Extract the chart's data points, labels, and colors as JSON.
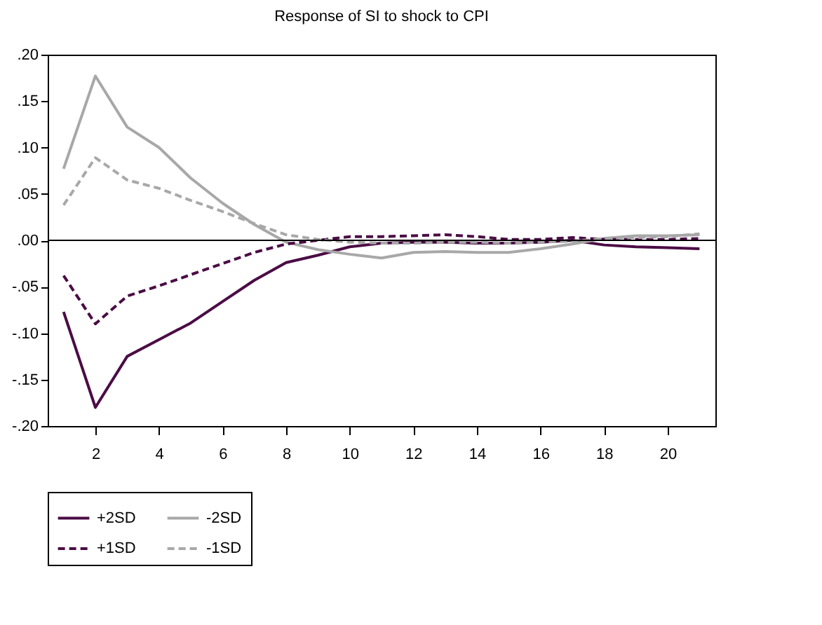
{
  "chart_data": {
    "type": "line",
    "title": "Response of SI to shock to CPI",
    "x": [
      1,
      2,
      3,
      4,
      5,
      6,
      7,
      8,
      9,
      10,
      11,
      12,
      13,
      14,
      15,
      16,
      17,
      18,
      19,
      20,
      21
    ],
    "xlim": [
      0.5,
      21.5
    ],
    "xticks": [
      2,
      4,
      6,
      8,
      10,
      12,
      14,
      16,
      18,
      20
    ],
    "ylim": [
      -0.2,
      0.2
    ],
    "yticks": [
      {
        "value": -0.2,
        "label": "-.20"
      },
      {
        "value": -0.15,
        "label": "-.15"
      },
      {
        "value": -0.1,
        "label": "-.10"
      },
      {
        "value": -0.05,
        "label": "-.05"
      },
      {
        "value": 0,
        "label": ".00"
      },
      {
        "value": 0.05,
        "label": ".05"
      },
      {
        "value": 0.1,
        "label": ".10"
      },
      {
        "value": 0.15,
        "label": ".15"
      },
      {
        "value": 0.2,
        "label": ".20"
      }
    ],
    "series": [
      {
        "name": "+2SD",
        "color": "#4b0c45",
        "line_style": "solid",
        "values": [
          -0.077,
          -0.18,
          -0.125,
          -0.107,
          -0.089,
          -0.066,
          -0.043,
          -0.024,
          -0.016,
          -0.007,
          -0.003,
          -0.002,
          -0.002,
          -0.003,
          -0.003,
          -0.002,
          0.0,
          -0.005,
          -0.007,
          -0.008,
          -0.009
        ]
      },
      {
        "name": "-2SD",
        "color": "#a8a8a8",
        "line_style": "solid",
        "values": [
          0.077,
          0.177,
          0.122,
          0.1,
          0.067,
          0.04,
          0.017,
          -0.002,
          -0.01,
          -0.015,
          -0.019,
          -0.013,
          -0.012,
          -0.013,
          -0.013,
          -0.009,
          -0.004,
          0.002,
          0.005,
          0.005,
          0.006
        ]
      },
      {
        "name": "+1SD",
        "color": "#4b0c45",
        "line_style": "dashed",
        "values": [
          -0.038,
          -0.09,
          -0.06,
          -0.049,
          -0.037,
          -0.025,
          -0.013,
          -0.004,
          0.0,
          0.004,
          0.004,
          0.005,
          0.006,
          0.004,
          0.001,
          0.001,
          0.003,
          0.001,
          0.001,
          0.001,
          0.002
        ]
      },
      {
        "name": "-1SD",
        "color": "#a8a8a8",
        "line_style": "dashed",
        "values": [
          0.038,
          0.089,
          0.065,
          0.056,
          0.043,
          0.031,
          0.018,
          0.006,
          0.001,
          -0.002,
          -0.003,
          -0.003,
          -0.002,
          -0.002,
          -0.003,
          -0.002,
          -0.001,
          0.002,
          0.003,
          0.004,
          0.007
        ]
      }
    ],
    "ref_lines": [
      {
        "axis": "y",
        "value": 0,
        "color": "#000000"
      }
    ],
    "legend": "bottom",
    "grid": false
  }
}
